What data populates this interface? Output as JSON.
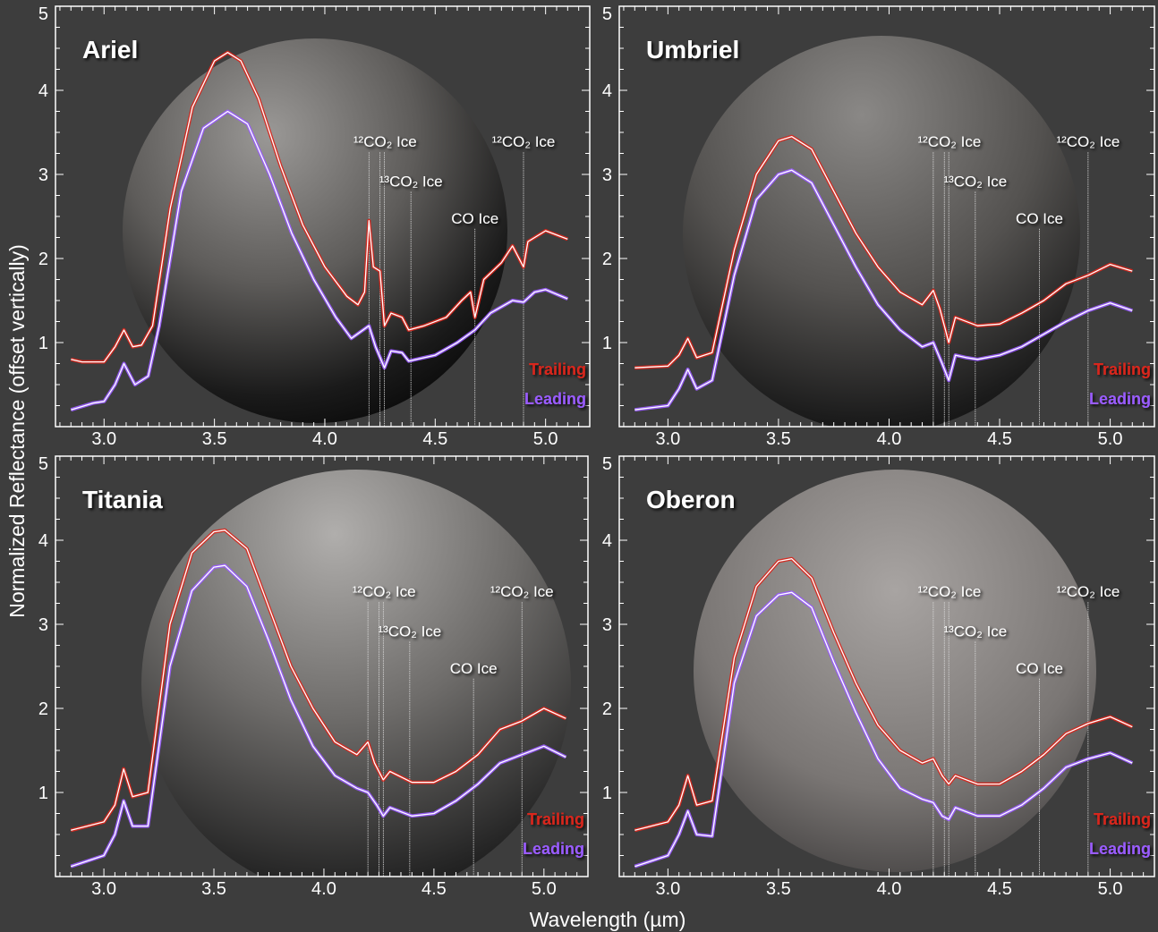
{
  "chart_data": {
    "type": "line",
    "xlabel": "Wavelength (µm)",
    "ylabel": "Normalized Reflectance (offset vertically)",
    "xlim": [
      2.78,
      5.2
    ],
    "ylim": [
      0,
      5
    ],
    "xticks": [
      "3.0",
      "3.5",
      "4.0",
      "4.5",
      "5.0"
    ],
    "yticks": [
      "1",
      "2",
      "3",
      "4",
      "5"
    ],
    "colors": {
      "Trailing": "#d9261c",
      "Leading": "#9a5cff",
      "line_core": "#ffffff",
      "background": "#3d3d3d"
    },
    "annotations": [
      {
        "label": "¹²CO₂ Ice",
        "x": [
          4.2,
          4.25,
          4.27
        ]
      },
      {
        "label": "¹³CO₂ Ice",
        "x": [
          4.39
        ]
      },
      {
        "label": "CO Ice",
        "x": [
          4.68
        ]
      },
      {
        "label": "¹²CO₂ Ice",
        "x": [
          4.9
        ]
      }
    ],
    "panels": [
      {
        "title": "Ariel",
        "series": [
          {
            "name": "Trailing",
            "x": [
              2.85,
              2.9,
              3.0,
              3.05,
              3.09,
              3.13,
              3.17,
              3.22,
              3.3,
              3.4,
              3.5,
              3.56,
              3.62,
              3.7,
              3.8,
              3.9,
              4.0,
              4.1,
              4.15,
              4.18,
              4.2,
              4.22,
              4.25,
              4.27,
              4.3,
              4.35,
              4.38,
              4.45,
              4.55,
              4.62,
              4.66,
              4.68,
              4.72,
              4.8,
              4.85,
              4.9,
              4.92,
              5.0,
              5.1
            ],
            "y": [
              0.8,
              0.77,
              0.77,
              0.95,
              1.15,
              0.95,
              0.97,
              1.2,
              2.6,
              3.8,
              4.35,
              4.45,
              4.35,
              3.9,
              3.1,
              2.4,
              1.9,
              1.55,
              1.45,
              1.6,
              2.45,
              1.9,
              1.85,
              1.2,
              1.35,
              1.3,
              1.15,
              1.2,
              1.3,
              1.5,
              1.6,
              1.3,
              1.75,
              1.95,
              2.15,
              1.9,
              2.2,
              2.33,
              2.23
            ]
          },
          {
            "name": "Leading",
            "x": [
              2.85,
              2.95,
              3.0,
              3.05,
              3.09,
              3.14,
              3.2,
              3.25,
              3.35,
              3.45,
              3.56,
              3.65,
              3.75,
              3.85,
              3.95,
              4.05,
              4.12,
              4.2,
              4.23,
              4.27,
              4.3,
              4.35,
              4.38,
              4.5,
              4.6,
              4.68,
              4.75,
              4.85,
              4.9,
              4.95,
              5.0,
              5.1
            ],
            "y": [
              0.2,
              0.28,
              0.3,
              0.5,
              0.75,
              0.5,
              0.6,
              1.2,
              2.8,
              3.55,
              3.75,
              3.6,
              3.0,
              2.3,
              1.75,
              1.3,
              1.05,
              1.2,
              0.95,
              0.7,
              0.9,
              0.88,
              0.78,
              0.85,
              1.0,
              1.15,
              1.35,
              1.5,
              1.48,
              1.6,
              1.63,
              1.52
            ]
          }
        ]
      },
      {
        "title": "Umbriel",
        "series": [
          {
            "name": "Trailing",
            "x": [
              2.85,
              3.0,
              3.05,
              3.09,
              3.13,
              3.2,
              3.3,
              3.4,
              3.5,
              3.56,
              3.65,
              3.75,
              3.85,
              3.95,
              4.05,
              4.15,
              4.2,
              4.23,
              4.27,
              4.3,
              4.4,
              4.5,
              4.6,
              4.7,
              4.8,
              4.9,
              5.0,
              5.1
            ],
            "y": [
              0.7,
              0.72,
              0.85,
              1.05,
              0.82,
              0.88,
              2.1,
              3.0,
              3.4,
              3.45,
              3.3,
              2.8,
              2.3,
              1.9,
              1.6,
              1.45,
              1.62,
              1.4,
              1.0,
              1.3,
              1.2,
              1.22,
              1.35,
              1.5,
              1.7,
              1.8,
              1.93,
              1.85
            ]
          },
          {
            "name": "Leading",
            "x": [
              2.85,
              3.0,
              3.05,
              3.09,
              3.13,
              3.2,
              3.3,
              3.4,
              3.5,
              3.56,
              3.65,
              3.75,
              3.85,
              3.95,
              4.05,
              4.15,
              4.2,
              4.24,
              4.27,
              4.3,
              4.35,
              4.4,
              4.5,
              4.6,
              4.7,
              4.8,
              4.9,
              5.0,
              5.1
            ],
            "y": [
              0.2,
              0.25,
              0.45,
              0.68,
              0.45,
              0.55,
              1.8,
              2.7,
              3.0,
              3.05,
              2.9,
              2.4,
              1.9,
              1.45,
              1.15,
              0.95,
              1.0,
              0.75,
              0.55,
              0.85,
              0.82,
              0.8,
              0.85,
              0.95,
              1.1,
              1.25,
              1.38,
              1.47,
              1.38
            ]
          }
        ]
      },
      {
        "title": "Titania",
        "series": [
          {
            "name": "Trailing",
            "x": [
              2.85,
              3.0,
              3.05,
              3.09,
              3.13,
              3.2,
              3.3,
              3.4,
              3.5,
              3.55,
              3.65,
              3.75,
              3.85,
              3.95,
              4.05,
              4.15,
              4.2,
              4.23,
              4.27,
              4.3,
              4.4,
              4.5,
              4.6,
              4.7,
              4.8,
              4.9,
              5.0,
              5.1
            ],
            "y": [
              0.55,
              0.65,
              0.85,
              1.28,
              0.95,
              1.0,
              3.0,
              3.85,
              4.1,
              4.12,
              3.9,
              3.2,
              2.5,
              2.0,
              1.6,
              1.45,
              1.6,
              1.35,
              1.15,
              1.25,
              1.12,
              1.12,
              1.25,
              1.45,
              1.75,
              1.85,
              2.0,
              1.88
            ]
          },
          {
            "name": "Leading",
            "x": [
              2.85,
              3.0,
              3.05,
              3.09,
              3.13,
              3.2,
              3.3,
              3.4,
              3.5,
              3.55,
              3.65,
              3.75,
              3.85,
              3.95,
              4.05,
              4.15,
              4.2,
              4.24,
              4.27,
              4.3,
              4.4,
              4.5,
              4.6,
              4.7,
              4.8,
              4.9,
              5.0,
              5.1
            ],
            "y": [
              0.12,
              0.25,
              0.5,
              0.9,
              0.6,
              0.6,
              2.5,
              3.4,
              3.68,
              3.7,
              3.45,
              2.8,
              2.1,
              1.55,
              1.2,
              1.05,
              1.0,
              0.85,
              0.72,
              0.82,
              0.72,
              0.75,
              0.9,
              1.1,
              1.35,
              1.45,
              1.55,
              1.42
            ]
          }
        ]
      },
      {
        "title": "Oberon",
        "series": [
          {
            "name": "Trailing",
            "x": [
              2.85,
              3.0,
              3.05,
              3.09,
              3.13,
              3.2,
              3.3,
              3.4,
              3.5,
              3.56,
              3.65,
              3.75,
              3.85,
              3.95,
              4.05,
              4.15,
              4.2,
              4.24,
              4.27,
              4.3,
              4.4,
              4.5,
              4.6,
              4.7,
              4.8,
              4.9,
              5.0,
              5.1
            ],
            "y": [
              0.55,
              0.65,
              0.85,
              1.2,
              0.85,
              0.9,
              2.6,
              3.45,
              3.75,
              3.78,
              3.55,
              2.9,
              2.3,
              1.8,
              1.5,
              1.35,
              1.4,
              1.2,
              1.1,
              1.2,
              1.1,
              1.1,
              1.25,
              1.45,
              1.7,
              1.82,
              1.9,
              1.78
            ]
          },
          {
            "name": "Leading",
            "x": [
              2.85,
              3.0,
              3.05,
              3.09,
              3.13,
              3.2,
              3.3,
              3.4,
              3.5,
              3.56,
              3.65,
              3.75,
              3.85,
              3.95,
              4.05,
              4.15,
              4.2,
              4.24,
              4.27,
              4.3,
              4.4,
              4.5,
              4.6,
              4.7,
              4.8,
              4.9,
              5.0,
              5.1
            ],
            "y": [
              0.12,
              0.25,
              0.5,
              0.78,
              0.5,
              0.48,
              2.3,
              3.1,
              3.35,
              3.38,
              3.2,
              2.55,
              1.95,
              1.4,
              1.05,
              0.92,
              0.88,
              0.72,
              0.68,
              0.82,
              0.72,
              0.72,
              0.85,
              1.05,
              1.3,
              1.4,
              1.47,
              1.35
            ]
          }
        ]
      }
    ]
  }
}
